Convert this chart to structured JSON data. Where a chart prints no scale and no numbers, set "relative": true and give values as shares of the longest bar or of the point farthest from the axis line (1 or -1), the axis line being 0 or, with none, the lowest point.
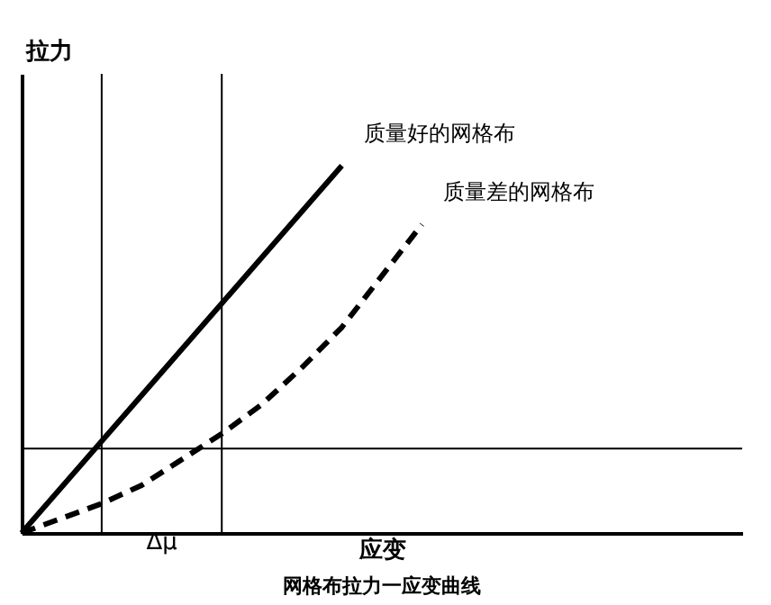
{
  "chart_data": {
    "type": "line",
    "relative": true,
    "title": "网格布拉力一应变曲线",
    "xlabel": "应变",
    "ylabel": "拉力",
    "legend": false,
    "grid": false,
    "marker": "none",
    "categories": [
      null,
      null,
      null,
      null,
      null,
      null,
      null,
      null,
      null,
      null,
      null
    ],
    "series": [
      {
        "name": "质量好的网格布",
        "color": "#000000",
        "line_style": "solid",
        "values": [
          0,
          0.125,
          0.25,
          0.375,
          0.5,
          0.625,
          0.75,
          0.875,
          1,
          null,
          null
        ]
      },
      {
        "name": "质量差的网格布",
        "color": "#000000",
        "line_style": "dashed",
        "values": [
          0,
          0.04,
          0.08,
          0.13,
          0.2,
          0.27,
          0.35,
          0.45,
          0.56,
          0.7,
          0.84
        ]
      }
    ],
    "ref_lines": [
      {
        "axis": "y",
        "value": 0.23,
        "color": "#000000"
      }
    ],
    "annotations": [
      "Δμ"
    ]
  }
}
